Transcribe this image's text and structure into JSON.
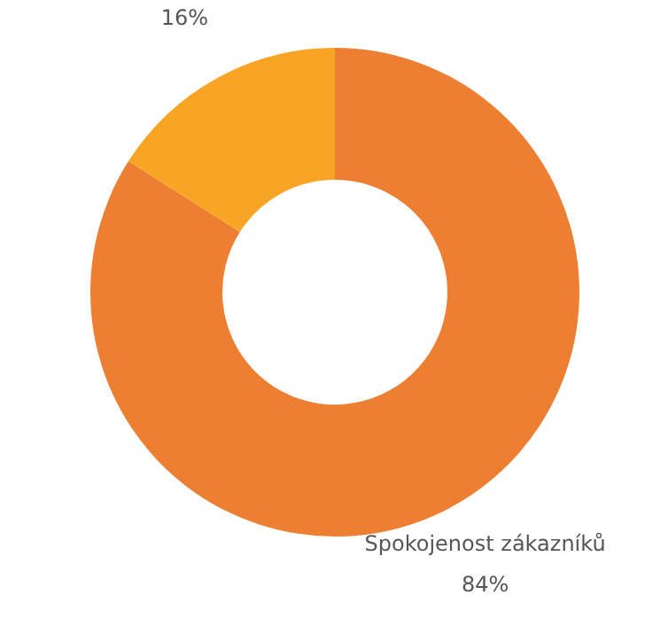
{
  "chart_data": {
    "type": "donut",
    "categories": [
      "Spokojenost zákazníků",
      null
    ],
    "values": [
      84,
      16
    ],
    "colors": [
      "#ed7f33",
      "#f8a424"
    ],
    "value_labels": [
      "84%",
      "16%"
    ],
    "legend": false
  }
}
